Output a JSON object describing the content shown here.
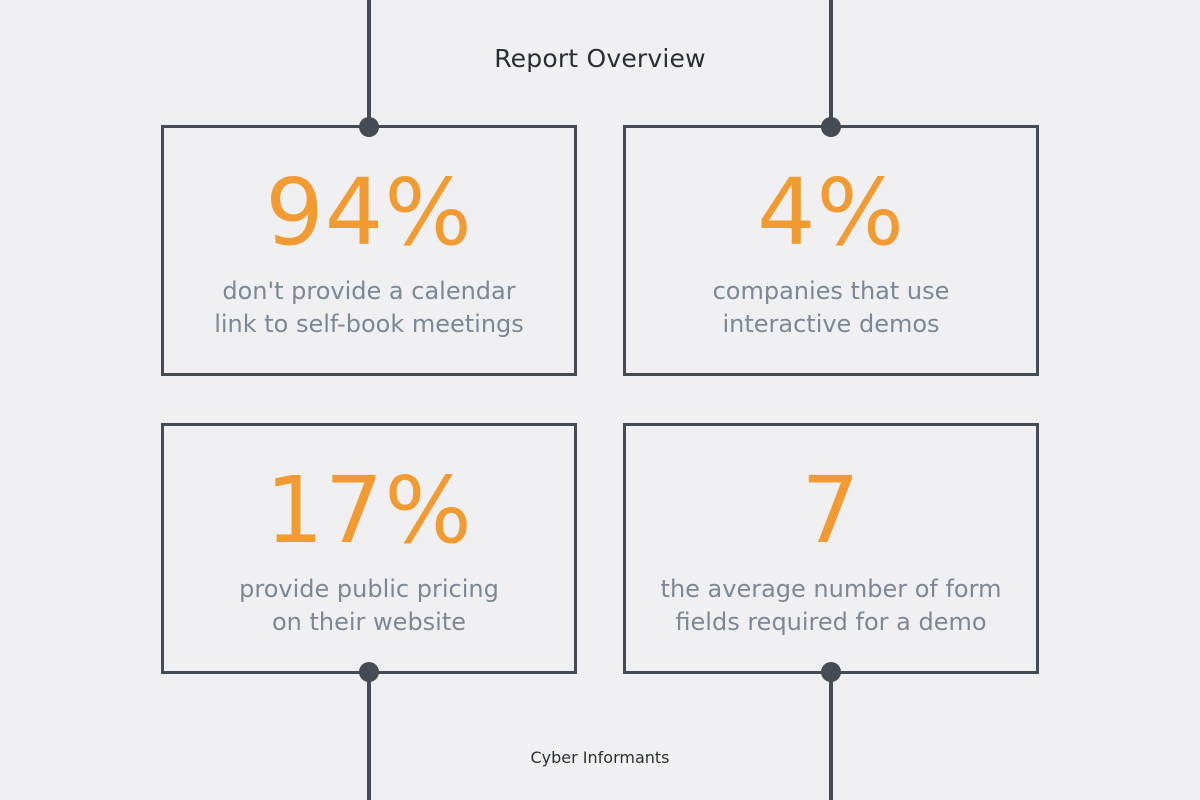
{
  "title": "Report Overview",
  "footer": "Cyber Informants",
  "colors": {
    "background": "#f0f0f2",
    "accent": "#f29b32",
    "line": "#454b54",
    "muted_text": "#7d8896",
    "dark_text": "#2b2f35"
  },
  "cards": [
    {
      "stat": "94%",
      "line1": "don't provide a calendar",
      "line2": "link to self-book meetings"
    },
    {
      "stat": "4%",
      "line1": "companies that use",
      "line2": "interactive demos"
    },
    {
      "stat": "17%",
      "line1": "provide public pricing",
      "line2": "on their website"
    },
    {
      "stat": "7",
      "line1": "the average number of form",
      "line2": "fields required for a demo"
    }
  ]
}
